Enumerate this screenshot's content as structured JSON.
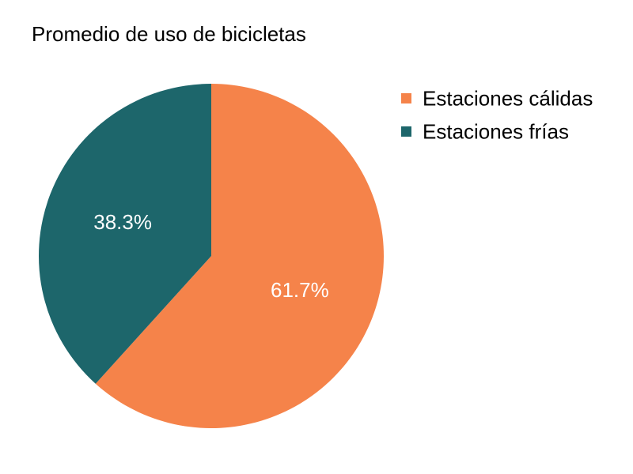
{
  "chart_data": {
    "type": "pie",
    "title": "Promedio de uso de bicicletas",
    "legend_position": "right",
    "slices": [
      {
        "label": "Estaciones cálidas",
        "value": 61.7,
        "display": "61.7%",
        "color": "#f5834a"
      },
      {
        "label": "Estaciones frías",
        "value": 38.3,
        "display": "38.3%",
        "color": "#1d666b"
      }
    ],
    "start_angle_deg": 0,
    "direction": "clockwise"
  }
}
